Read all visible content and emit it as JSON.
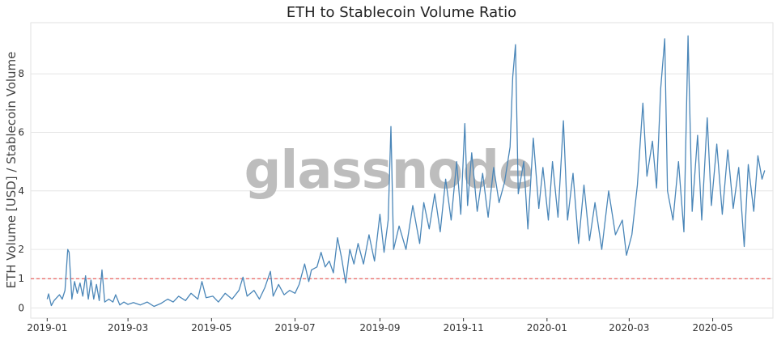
{
  "chart_data": {
    "type": "line",
    "title": "ETH to Stablecoin Volume Ratio",
    "xlabel": "",
    "ylabel": "ETH Volume [USD] / Stablecoin Volume",
    "watermark": "glassnode",
    "x_range": [
      "2018-12-20",
      "2020-06-14"
    ],
    "ylim": [
      -0.35,
      9.75
    ],
    "y_ticks": [
      0,
      1,
      2,
      4,
      6,
      8
    ],
    "x_ticks": [
      "2019-01",
      "2019-03",
      "2019-05",
      "2019-07",
      "2019-09",
      "2019-11",
      "2020-01",
      "2020-03",
      "2020-05"
    ],
    "reference_line": {
      "y": 1,
      "color": "#e8413c",
      "style": "dashed"
    },
    "grid": "horizontal",
    "legend": "none",
    "series": [
      {
        "color": "#4a86b8",
        "points": [
          [
            "2019-01-01",
            0.3
          ],
          [
            "2019-01-02",
            0.48
          ],
          [
            "2019-01-04",
            0.08
          ],
          [
            "2019-01-06",
            0.25
          ],
          [
            "2019-01-08",
            0.35
          ],
          [
            "2019-01-10",
            0.45
          ],
          [
            "2019-01-12",
            0.3
          ],
          [
            "2019-01-14",
            0.6
          ],
          [
            "2019-01-16",
            2.0
          ],
          [
            "2019-01-17",
            1.9
          ],
          [
            "2019-01-19",
            0.3
          ],
          [
            "2019-01-21",
            0.9
          ],
          [
            "2019-01-23",
            0.5
          ],
          [
            "2019-01-25",
            0.85
          ],
          [
            "2019-01-27",
            0.4
          ],
          [
            "2019-01-29",
            1.1
          ],
          [
            "2019-01-31",
            0.3
          ],
          [
            "2019-02-02",
            0.95
          ],
          [
            "2019-02-04",
            0.3
          ],
          [
            "2019-02-06",
            0.8
          ],
          [
            "2019-02-08",
            0.25
          ],
          [
            "2019-02-10",
            1.3
          ],
          [
            "2019-02-12",
            0.2
          ],
          [
            "2019-02-15",
            0.3
          ],
          [
            "2019-02-18",
            0.2
          ],
          [
            "2019-02-20",
            0.45
          ],
          [
            "2019-02-23",
            0.1
          ],
          [
            "2019-02-26",
            0.2
          ],
          [
            "2019-03-01",
            0.12
          ],
          [
            "2019-03-05",
            0.18
          ],
          [
            "2019-03-10",
            0.1
          ],
          [
            "2019-03-15",
            0.2
          ],
          [
            "2019-03-20",
            0.05
          ],
          [
            "2019-03-25",
            0.15
          ],
          [
            "2019-03-30",
            0.3
          ],
          [
            "2019-04-03",
            0.2
          ],
          [
            "2019-04-07",
            0.4
          ],
          [
            "2019-04-12",
            0.25
          ],
          [
            "2019-04-16",
            0.5
          ],
          [
            "2019-04-21",
            0.3
          ],
          [
            "2019-04-24",
            0.9
          ],
          [
            "2019-04-27",
            0.35
          ],
          [
            "2019-05-02",
            0.4
          ],
          [
            "2019-05-06",
            0.2
          ],
          [
            "2019-05-11",
            0.5
          ],
          [
            "2019-05-16",
            0.3
          ],
          [
            "2019-05-21",
            0.6
          ],
          [
            "2019-05-24",
            1.05
          ],
          [
            "2019-05-27",
            0.4
          ],
          [
            "2019-06-01",
            0.6
          ],
          [
            "2019-06-05",
            0.3
          ],
          [
            "2019-06-09",
            0.7
          ],
          [
            "2019-06-13",
            1.25
          ],
          [
            "2019-06-15",
            0.4
          ],
          [
            "2019-06-19",
            0.8
          ],
          [
            "2019-06-23",
            0.45
          ],
          [
            "2019-06-27",
            0.6
          ],
          [
            "2019-07-01",
            0.5
          ],
          [
            "2019-07-04",
            0.8
          ],
          [
            "2019-07-08",
            1.5
          ],
          [
            "2019-07-11",
            0.9
          ],
          [
            "2019-07-13",
            1.3
          ],
          [
            "2019-07-17",
            1.4
          ],
          [
            "2019-07-20",
            1.9
          ],
          [
            "2019-07-23",
            1.4
          ],
          [
            "2019-07-26",
            1.6
          ],
          [
            "2019-07-29",
            1.2
          ],
          [
            "2019-08-01",
            2.4
          ],
          [
            "2019-08-04",
            1.7
          ],
          [
            "2019-08-07",
            0.85
          ],
          [
            "2019-08-10",
            2.0
          ],
          [
            "2019-08-13",
            1.5
          ],
          [
            "2019-08-16",
            2.2
          ],
          [
            "2019-08-20",
            1.5
          ],
          [
            "2019-08-24",
            2.5
          ],
          [
            "2019-08-28",
            1.6
          ],
          [
            "2019-09-01",
            3.2
          ],
          [
            "2019-09-04",
            1.9
          ],
          [
            "2019-09-07",
            3.0
          ],
          [
            "2019-09-09",
            6.2
          ],
          [
            "2019-09-11",
            2.0
          ],
          [
            "2019-09-15",
            2.8
          ],
          [
            "2019-09-20",
            2.0
          ],
          [
            "2019-09-25",
            3.5
          ],
          [
            "2019-09-30",
            2.2
          ],
          [
            "2019-10-03",
            3.6
          ],
          [
            "2019-10-07",
            2.7
          ],
          [
            "2019-10-11",
            3.9
          ],
          [
            "2019-10-15",
            2.6
          ],
          [
            "2019-10-19",
            4.4
          ],
          [
            "2019-10-23",
            3.0
          ],
          [
            "2019-10-27",
            5.0
          ],
          [
            "2019-10-30",
            3.2
          ],
          [
            "2019-11-02",
            6.3
          ],
          [
            "2019-11-04",
            3.5
          ],
          [
            "2019-11-07",
            5.3
          ],
          [
            "2019-11-11",
            3.3
          ],
          [
            "2019-11-15",
            4.6
          ],
          [
            "2019-11-19",
            3.1
          ],
          [
            "2019-11-23",
            4.8
          ],
          [
            "2019-11-27",
            3.6
          ],
          [
            "2019-12-01",
            4.3
          ],
          [
            "2019-12-05",
            5.5
          ],
          [
            "2019-12-07",
            7.9
          ],
          [
            "2019-12-09",
            9.0
          ],
          [
            "2019-12-11",
            3.9
          ],
          [
            "2019-12-15",
            5.0
          ],
          [
            "2019-12-18",
            2.7
          ],
          [
            "2019-12-22",
            5.8
          ],
          [
            "2019-12-26",
            3.4
          ],
          [
            "2019-12-29",
            4.8
          ],
          [
            "2020-01-02",
            3.0
          ],
          [
            "2020-01-05",
            5.0
          ],
          [
            "2020-01-09",
            3.1
          ],
          [
            "2020-01-13",
            6.4
          ],
          [
            "2020-01-16",
            3.0
          ],
          [
            "2020-01-20",
            4.6
          ],
          [
            "2020-01-24",
            2.2
          ],
          [
            "2020-01-28",
            4.2
          ],
          [
            "2020-02-01",
            2.3
          ],
          [
            "2020-02-05",
            3.6
          ],
          [
            "2020-02-10",
            2.0
          ],
          [
            "2020-02-15",
            4.0
          ],
          [
            "2020-02-20",
            2.5
          ],
          [
            "2020-02-25",
            3.0
          ],
          [
            "2020-02-28",
            1.8
          ],
          [
            "2020-03-03",
            2.5
          ],
          [
            "2020-03-07",
            4.2
          ],
          [
            "2020-03-11",
            7.0
          ],
          [
            "2020-03-14",
            4.5
          ],
          [
            "2020-03-18",
            5.7
          ],
          [
            "2020-03-21",
            4.1
          ],
          [
            "2020-03-24",
            7.5
          ],
          [
            "2020-03-27",
            9.2
          ],
          [
            "2020-03-29",
            4.0
          ],
          [
            "2020-04-02",
            3.0
          ],
          [
            "2020-04-06",
            5.0
          ],
          [
            "2020-04-10",
            2.6
          ],
          [
            "2020-04-13",
            9.3
          ],
          [
            "2020-04-16",
            3.3
          ],
          [
            "2020-04-20",
            5.9
          ],
          [
            "2020-04-23",
            3.0
          ],
          [
            "2020-04-27",
            6.5
          ],
          [
            "2020-04-30",
            3.5
          ],
          [
            "2020-05-04",
            5.6
          ],
          [
            "2020-05-08",
            3.2
          ],
          [
            "2020-05-12",
            5.4
          ],
          [
            "2020-05-16",
            3.4
          ],
          [
            "2020-05-20",
            4.8
          ],
          [
            "2020-05-24",
            2.1
          ],
          [
            "2020-05-27",
            4.9
          ],
          [
            "2020-05-31",
            3.3
          ],
          [
            "2020-06-03",
            5.2
          ],
          [
            "2020-06-06",
            4.4
          ],
          [
            "2020-06-08",
            4.7
          ]
        ]
      }
    ]
  }
}
